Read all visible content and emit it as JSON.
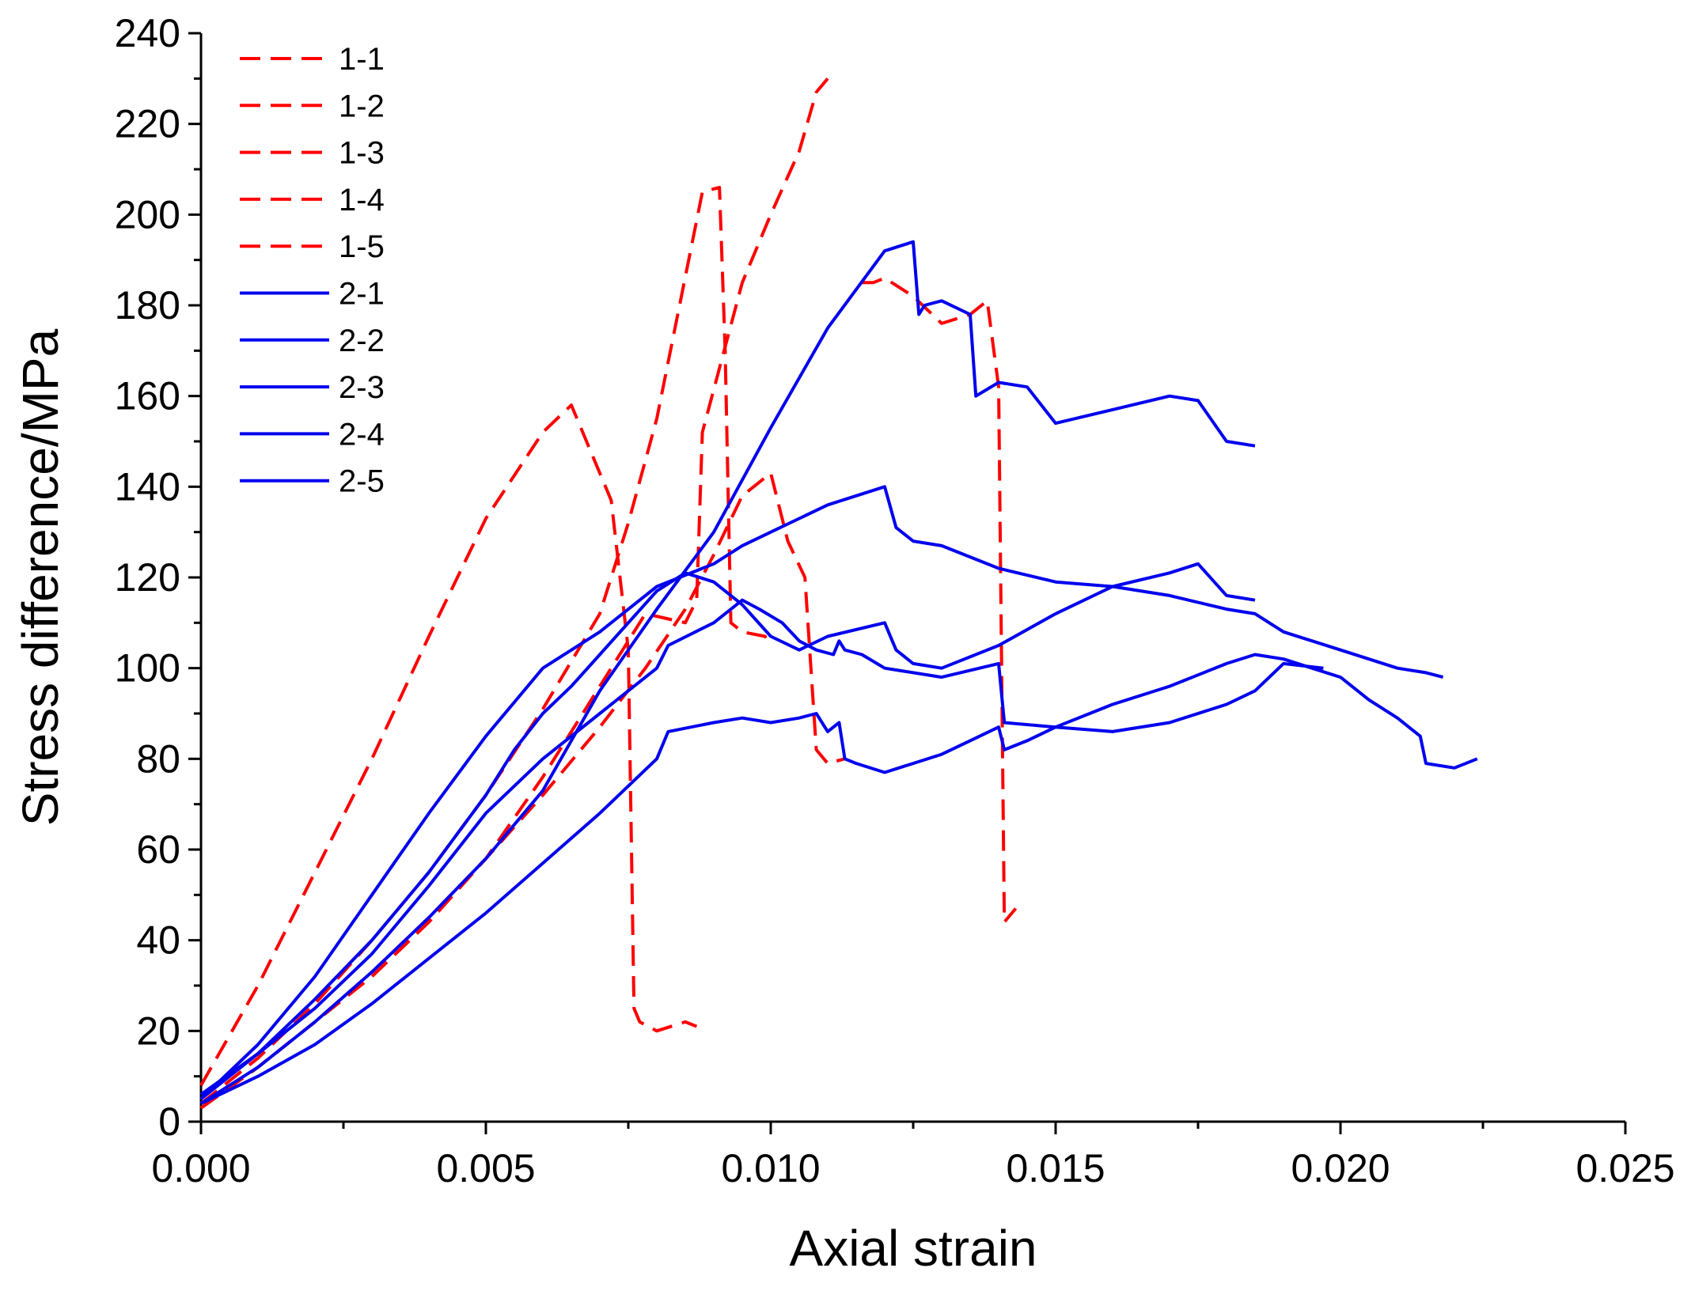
{
  "chart_data": {
    "type": "line",
    "title": "",
    "xlabel": "Axial strain",
    "ylabel": "Stress difference/MPa",
    "xlim": [
      0,
      0.025
    ],
    "ylim": [
      0,
      240
    ],
    "xticks": [
      0,
      0.005,
      0.01,
      0.015,
      0.02,
      0.025
    ],
    "xtick_labels": [
      "0.000",
      "0.005",
      "0.010",
      "0.015",
      "0.020",
      "0.025"
    ],
    "yticks": [
      0,
      20,
      40,
      60,
      80,
      100,
      120,
      140,
      160,
      180,
      200,
      220,
      240
    ],
    "ytick_labels": [
      "0",
      "20",
      "40",
      "60",
      "80",
      "100",
      "120",
      "140",
      "160",
      "180",
      "200",
      "220",
      "240"
    ],
    "grid": false,
    "legend_position": "top-left",
    "series": [
      {
        "name": "1-1",
        "color": "#ff0000",
        "style": "dashed",
        "x": [
          0,
          0.001,
          0.002,
          0.003,
          0.004,
          0.005,
          0.006,
          0.0065,
          0.007,
          0.0072,
          0.0075,
          0.0076,
          0.0077,
          0.008,
          0.0085,
          0.0087
        ],
        "y": [
          8,
          30,
          55,
          80,
          107,
          133,
          152,
          158,
          143,
          137,
          104,
          25,
          22,
          20,
          22,
          21
        ]
      },
      {
        "name": "1-2",
        "color": "#ff0000",
        "style": "dashed",
        "x": [
          0,
          0.001,
          0.002,
          0.003,
          0.004,
          0.005,
          0.006,
          0.007,
          0.0075,
          0.008,
          0.0088,
          0.0091,
          0.0092,
          0.0093,
          0.0095,
          0.0099,
          0.01
        ],
        "y": [
          4,
          14,
          26,
          40,
          55,
          72,
          91,
          112,
          132,
          155,
          205,
          206,
          170,
          110,
          108,
          107,
          105
        ]
      },
      {
        "name": "1-3",
        "color": "#ff0000",
        "style": "dashed",
        "x": [
          0,
          0.001,
          0.002,
          0.003,
          0.004,
          0.005,
          0.006,
          0.007,
          0.0078,
          0.0085,
          0.0087,
          0.0088,
          0.0095,
          0.01,
          0.0105,
          0.0108,
          0.011
        ],
        "y": [
          3,
          12,
          22,
          32,
          44,
          58,
          76,
          96,
          112,
          110,
          115,
          152,
          185,
          200,
          214,
          227,
          230
        ]
      },
      {
        "name": "1-4",
        "color": "#ff0000",
        "style": "dashed",
        "x": [
          0.0116,
          0.0118,
          0.012,
          0.0125,
          0.013,
          0.0135,
          0.0138,
          0.014,
          0.0141,
          0.0143
        ],
        "y": [
          185,
          185,
          186,
          182,
          176,
          178,
          181,
          162,
          44,
          47
        ]
      },
      {
        "name": "1-5",
        "color": "#ff0000",
        "style": "dashed",
        "x": [
          0,
          0.001,
          0.002,
          0.003,
          0.004,
          0.005,
          0.006,
          0.007,
          0.0078,
          0.0085,
          0.009,
          0.0095,
          0.01,
          0.0103,
          0.0106,
          0.0108,
          0.011,
          0.0113
        ],
        "y": [
          3,
          12,
          22,
          33,
          45,
          58,
          72,
          87,
          100,
          113,
          125,
          138,
          143,
          128,
          120,
          82,
          79,
          80
        ]
      },
      {
        "name": "2-1",
        "color": "#0000ee",
        "style": "solid",
        "x": [
          0,
          0.001,
          0.002,
          0.003,
          0.004,
          0.005,
          0.006,
          0.007,
          0.008,
          0.009,
          0.01,
          0.011,
          0.012,
          0.0125,
          0.0126,
          0.0127,
          0.013,
          0.0135,
          0.0136,
          0.014,
          0.0145,
          0.015,
          0.016,
          0.017,
          0.0175,
          0.018,
          0.0185
        ],
        "y": [
          4,
          12,
          22,
          33,
          45,
          58,
          73,
          95,
          113,
          130,
          153,
          175,
          192,
          194,
          178,
          180,
          181,
          178,
          160,
          163,
          162,
          154,
          157,
          160,
          159,
          150,
          149
        ]
      },
      {
        "name": "2-2",
        "color": "#0000ee",
        "style": "solid",
        "x": [
          0,
          0.001,
          0.002,
          0.003,
          0.004,
          0.005,
          0.0055,
          0.006,
          0.0065,
          0.007,
          0.008,
          0.0085,
          0.009,
          0.0095,
          0.01,
          0.0105,
          0.011,
          0.012,
          0.0122,
          0.0125,
          0.013,
          0.014,
          0.015,
          0.016,
          0.017,
          0.0175,
          0.018,
          0.0185
        ],
        "y": [
          5,
          15,
          27,
          40,
          55,
          72,
          82,
          90,
          96,
          103,
          117,
          121,
          119,
          114,
          107,
          104,
          107,
          110,
          104,
          101,
          100,
          105,
          112,
          118,
          121,
          123,
          116,
          115
        ]
      },
      {
        "name": "2-3",
        "color": "#0000ee",
        "style": "solid",
        "x": [
          0,
          0.001,
          0.002,
          0.003,
          0.004,
          0.005,
          0.006,
          0.007,
          0.008,
          0.009,
          0.0095,
          0.01,
          0.0105,
          0.011,
          0.0115,
          0.012,
          0.0122,
          0.0125,
          0.013,
          0.014,
          0.015,
          0.016,
          0.017,
          0.018,
          0.0185,
          0.019,
          0.02,
          0.021,
          0.0215,
          0.0218
        ],
        "y": [
          5,
          17,
          32,
          50,
          68,
          85,
          100,
          108,
          118,
          123,
          127,
          130,
          133,
          136,
          138,
          140,
          131,
          128,
          127,
          122,
          119,
          118,
          116,
          113,
          112,
          108,
          104,
          100,
          99,
          98
        ]
      },
      {
        "name": "2-4",
        "color": "#0000ee",
        "style": "solid",
        "x": [
          0,
          0.001,
          0.002,
          0.003,
          0.004,
          0.005,
          0.006,
          0.007,
          0.0075,
          0.008,
          0.0082,
          0.009,
          0.0095,
          0.0098,
          0.0102,
          0.0105,
          0.0108,
          0.0111,
          0.0112,
          0.0113,
          0.0116,
          0.012,
          0.013,
          0.014,
          0.0141,
          0.015,
          0.016,
          0.017,
          0.018,
          0.0185,
          0.019,
          0.0197
        ],
        "y": [
          6,
          15,
          25,
          37,
          52,
          68,
          80,
          90,
          95,
          100,
          105,
          110,
          115,
          113,
          110,
          106,
          104,
          103,
          106,
          104,
          103,
          100,
          98,
          101,
          88,
          87,
          86,
          88,
          92,
          95,
          101,
          100
        ]
      },
      {
        "name": "2-5",
        "color": "#0000ee",
        "style": "solid",
        "x": [
          0,
          0.001,
          0.002,
          0.003,
          0.004,
          0.005,
          0.006,
          0.007,
          0.008,
          0.0082,
          0.009,
          0.0095,
          0.01,
          0.0105,
          0.0108,
          0.011,
          0.0112,
          0.0113,
          0.0115,
          0.012,
          0.0125,
          0.013,
          0.0135,
          0.014,
          0.0141,
          0.0145,
          0.015,
          0.016,
          0.017,
          0.018,
          0.0185,
          0.019,
          0.0195,
          0.02,
          0.0205,
          0.021,
          0.0214,
          0.0215,
          0.022,
          0.0224
        ],
        "y": [
          4,
          10,
          17,
          26,
          36,
          46,
          57,
          68,
          80,
          86,
          88,
          89,
          88,
          89,
          90,
          86,
          88,
          80,
          79,
          77,
          79,
          81,
          84,
          87,
          82,
          84,
          87,
          92,
          96,
          101,
          103,
          102,
          100,
          98,
          93,
          89,
          85,
          79,
          78,
          80
        ]
      }
    ]
  }
}
